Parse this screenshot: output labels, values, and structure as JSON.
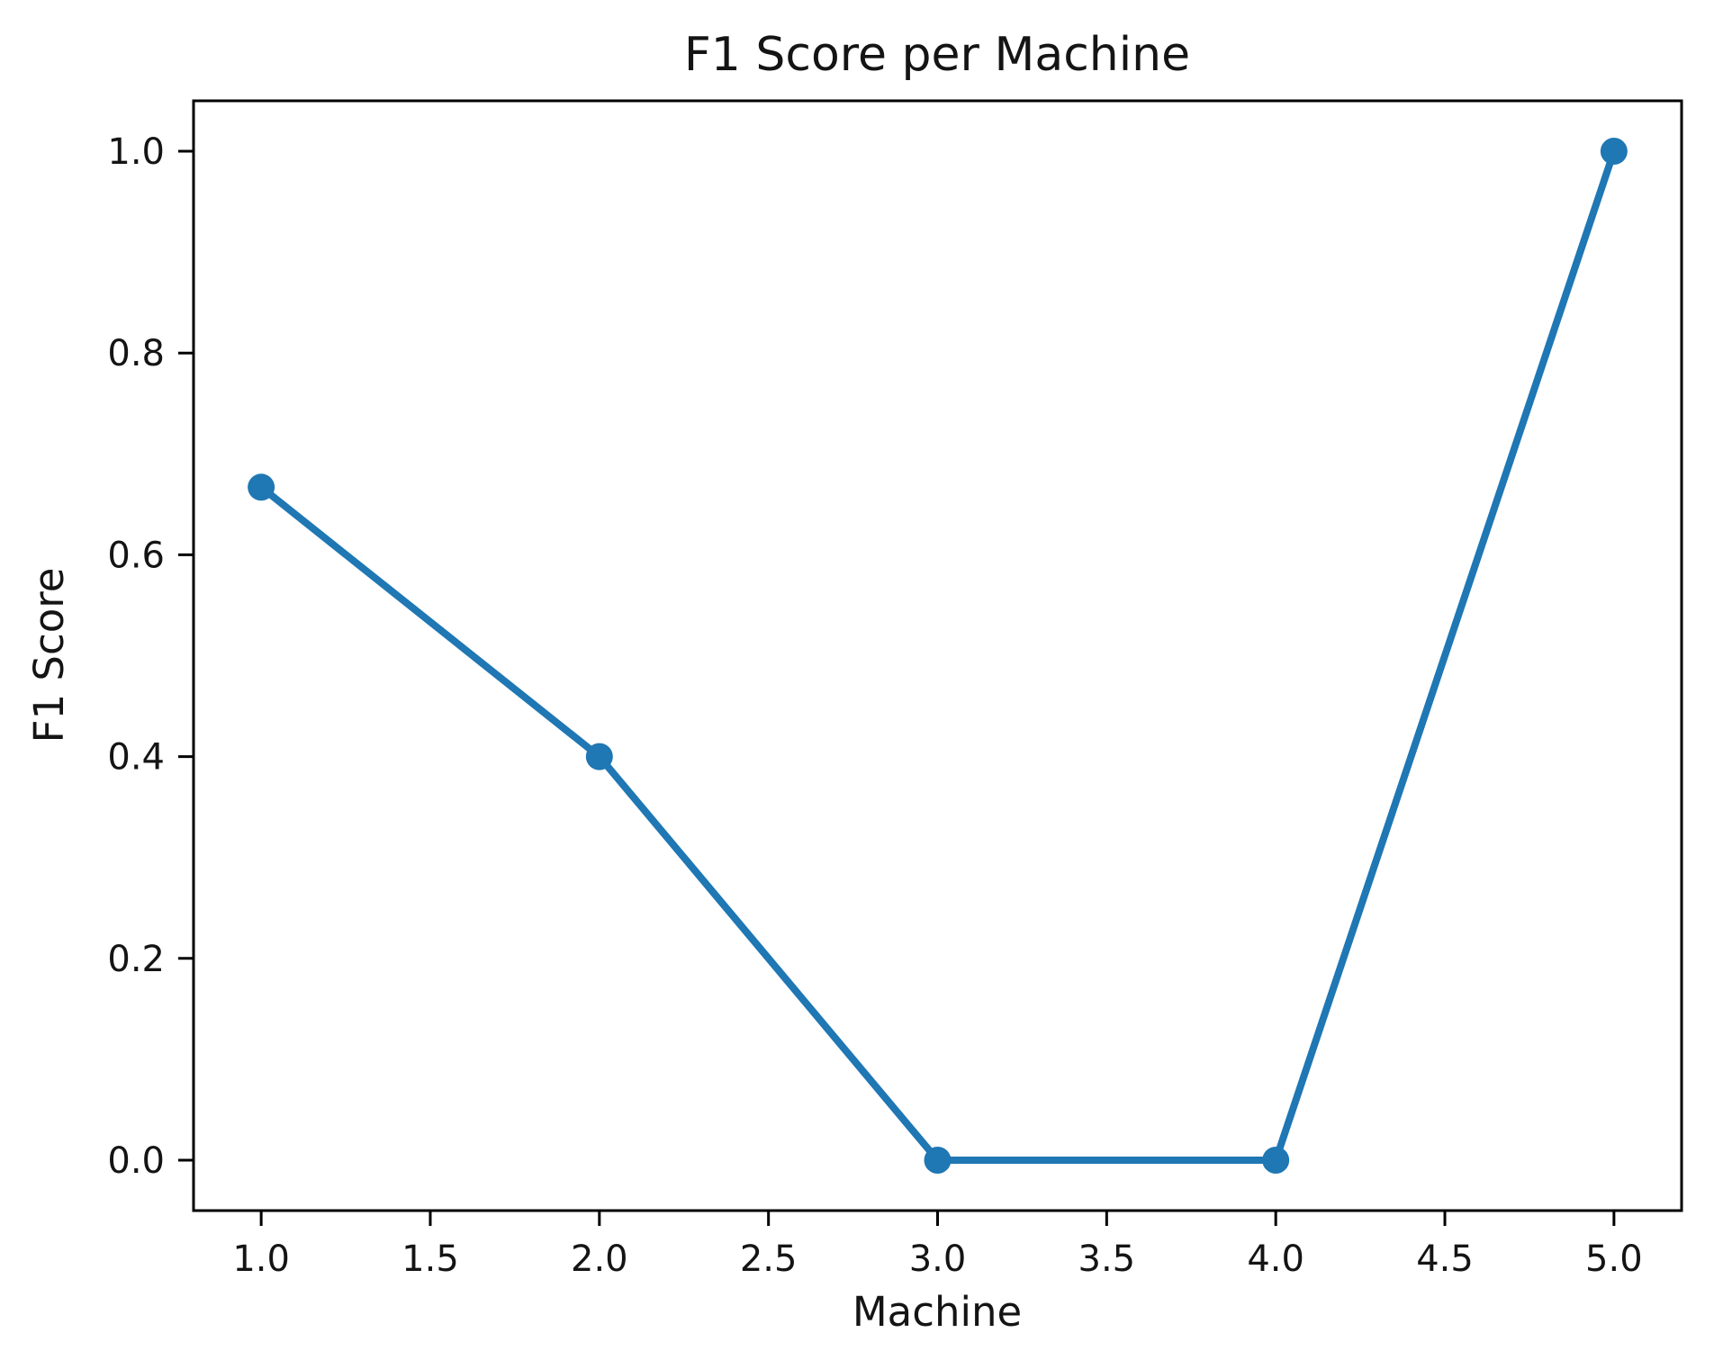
{
  "chart_data": {
    "type": "line",
    "title": "F1 Score per Machine",
    "xlabel": "Machine",
    "ylabel": "F1 Score",
    "x": [
      1,
      2,
      3,
      4,
      5
    ],
    "y": [
      0.667,
      0.4,
      0.0,
      0.0,
      1.0
    ],
    "xlim": [
      0.8,
      5.2
    ],
    "ylim": [
      -0.05,
      1.05
    ],
    "xticks": [
      1.0,
      1.5,
      2.0,
      2.5,
      3.0,
      3.5,
      4.0,
      4.5,
      5.0
    ],
    "yticks": [
      0.0,
      0.2,
      0.4,
      0.6,
      0.8,
      1.0
    ],
    "x_tick_labels": [
      "1.0",
      "1.5",
      "2.0",
      "2.5",
      "3.0",
      "3.5",
      "4.0",
      "4.5",
      "5.0"
    ],
    "y_tick_labels": [
      "0.0",
      "0.2",
      "0.4",
      "0.6",
      "0.8",
      "1.0"
    ],
    "line_color": "#1f77b4",
    "marker": "circle",
    "marker_radius": 15,
    "line_width": 8,
    "grid": false,
    "legend": "none",
    "spine_color": "#000000"
  }
}
